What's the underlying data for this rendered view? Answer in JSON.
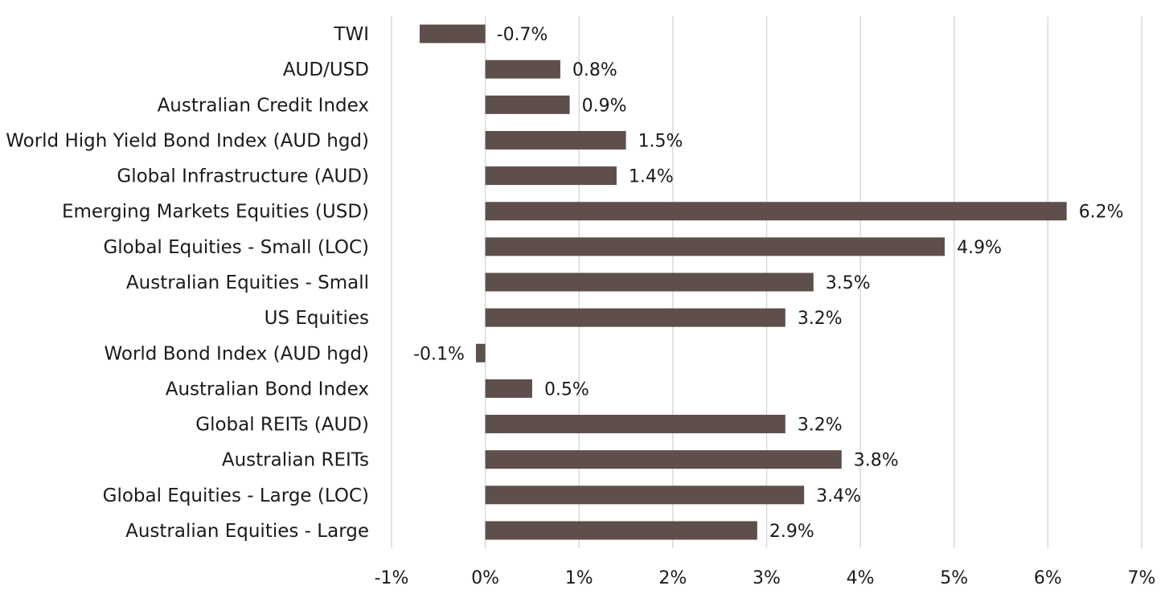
{
  "chart_data": {
    "type": "bar",
    "orientation": "horizontal",
    "categories": [
      "TWI",
      "AUD/USD",
      "Australian Credit Index",
      "World High Yield Bond Index (AUD hgd)",
      "Global Infrastructure (AUD)",
      "Emerging Markets Equities (USD)",
      "Global Equities - Small (LOC)",
      "Australian Equities - Small",
      "US Equities",
      "World Bond Index (AUD hgd)",
      "Australian Bond Index",
      "Global REITs (AUD)",
      "Australian REITs",
      "Global Equities - Large (LOC)",
      "Australian Equities - Large"
    ],
    "values": [
      -0.7,
      0.8,
      0.9,
      1.5,
      1.4,
      6.2,
      4.9,
      3.5,
      3.2,
      -0.1,
      0.5,
      3.2,
      3.8,
      3.4,
      2.9
    ],
    "data_labels": [
      "-0.7%",
      "0.8%",
      "0.9%",
      "1.5%",
      "1.4%",
      "6.2%",
      "4.9%",
      "3.5%",
      "3.2%",
      "-0.1%",
      "0.5%",
      "3.2%",
      "3.8%",
      "3.4%",
      "2.9%"
    ],
    "xlim": [
      -1,
      7
    ],
    "x_ticks": [
      -1,
      0,
      1,
      2,
      3,
      4,
      5,
      6,
      7
    ],
    "x_tick_labels": [
      "-1%",
      "0%",
      "1%",
      "2%",
      "3%",
      "4%",
      "5%",
      "6%",
      "7%"
    ],
    "title": "",
    "xlabel": "",
    "ylabel": "",
    "grid": "vertical",
    "legend": "none",
    "bar_color": "#5e4f4c"
  }
}
